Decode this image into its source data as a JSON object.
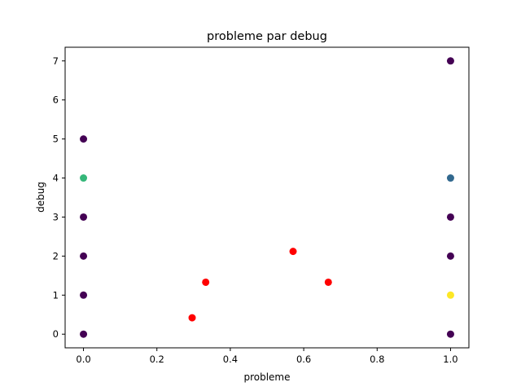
{
  "chart_data": {
    "type": "scatter",
    "title": "probleme par debug",
    "xlabel": "probleme",
    "ylabel": "debug",
    "xlim": [
      -0.05,
      1.05
    ],
    "ylim": [
      -0.35,
      7.35
    ],
    "x_ticks": [
      0.0,
      0.2,
      0.4,
      0.6,
      0.8,
      1.0
    ],
    "x_tick_labels": [
      "0.0",
      "0.2",
      "0.4",
      "0.6",
      "0.8",
      "1.0"
    ],
    "y_ticks": [
      0,
      1,
      2,
      3,
      4,
      5,
      6,
      7
    ],
    "y_tick_labels": [
      "0",
      "1",
      "2",
      "3",
      "4",
      "5",
      "6",
      "7"
    ],
    "grid": false,
    "legend": "none",
    "points": [
      {
        "x": 0,
        "y": 0,
        "color": "#440154"
      },
      {
        "x": 0,
        "y": 1,
        "color": "#440154"
      },
      {
        "x": 0,
        "y": 2,
        "color": "#440154"
      },
      {
        "x": 0,
        "y": 3,
        "color": "#440154"
      },
      {
        "x": 0,
        "y": 4,
        "color": "#35b779"
      },
      {
        "x": 0,
        "y": 5,
        "color": "#440154"
      },
      {
        "x": 1,
        "y": 0,
        "color": "#440154"
      },
      {
        "x": 1,
        "y": 1,
        "color": "#fde725"
      },
      {
        "x": 1,
        "y": 2,
        "color": "#440154"
      },
      {
        "x": 1,
        "y": 3,
        "color": "#440154"
      },
      {
        "x": 1,
        "y": 4,
        "color": "#31688e"
      },
      {
        "x": 1,
        "y": 7,
        "color": "#440154"
      },
      {
        "x": 0.296,
        "y": 0.42,
        "color": "#ff0000"
      },
      {
        "x": 0.333,
        "y": 1.33,
        "color": "#ff0000"
      },
      {
        "x": 0.571,
        "y": 2.12,
        "color": "#ff0000"
      },
      {
        "x": 0.667,
        "y": 1.33,
        "color": "#ff0000"
      }
    ]
  }
}
